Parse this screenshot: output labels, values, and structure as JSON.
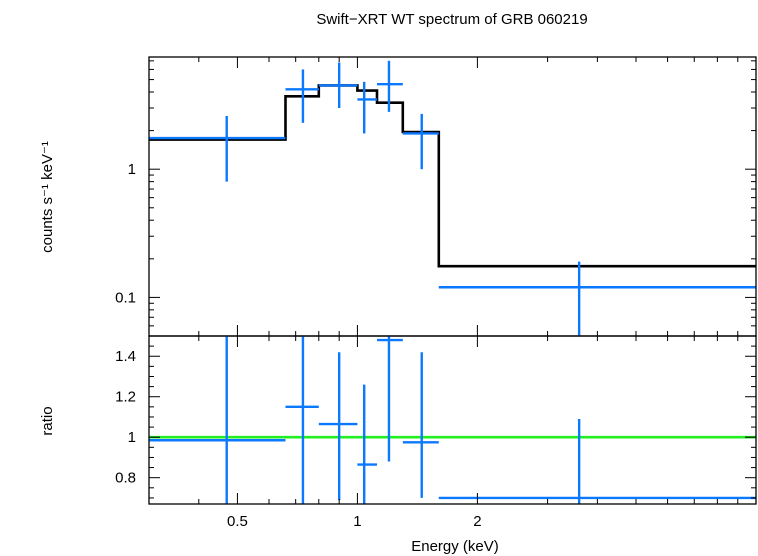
{
  "chart_data": {
    "title": "Swift−XRT WT spectrum of GRB 060219",
    "xlabel": "Energy (keV)",
    "type": "line",
    "x_scale": "log",
    "xlim": [
      0.3,
      10
    ],
    "x_ticks": [
      {
        "value": 0.5,
        "label": "0.5"
      },
      {
        "value": 1,
        "label": "1"
      },
      {
        "value": 2,
        "label": "2"
      }
    ],
    "panels": [
      {
        "id": "spectrum",
        "ylabel": "counts s⁻¹ keV⁻¹",
        "y_scale": "log",
        "ylim": [
          0.05,
          7.5
        ],
        "y_ticks": [
          {
            "value": 0.1,
            "label": "0.1"
          },
          {
            "value": 1,
            "label": "1"
          }
        ],
        "data_points": [
          {
            "x": 0.47,
            "xlo": 0.3,
            "xhi": 0.66,
            "y": 1.75,
            "ylo": 0.8,
            "yhi": 2.6
          },
          {
            "x": 0.73,
            "xlo": 0.66,
            "xhi": 0.8,
            "y": 4.2,
            "ylo": 2.3,
            "yhi": 6.0
          },
          {
            "x": 0.9,
            "xlo": 0.8,
            "xhi": 1.0,
            "y": 4.5,
            "ylo": 3.0,
            "yhi": 6.8
          },
          {
            "x": 1.04,
            "xlo": 1.0,
            "xhi": 1.12,
            "y": 3.5,
            "ylo": 1.9,
            "yhi": 4.8
          },
          {
            "x": 1.2,
            "xlo": 1.12,
            "xhi": 1.3,
            "y": 4.6,
            "ylo": 2.8,
            "yhi": 7.0
          },
          {
            "x": 1.45,
            "xlo": 1.3,
            "xhi": 1.6,
            "y": 1.9,
            "ylo": 1.0,
            "yhi": 2.7
          },
          {
            "x": 3.6,
            "xlo": 1.6,
            "xhi": 10.0,
            "y": 0.12,
            "ylo": 0.05,
            "yhi": 0.19
          }
        ],
        "model_steps": [
          {
            "xlo": 0.3,
            "xhi": 0.66,
            "y": 1.7
          },
          {
            "xlo": 0.66,
            "xhi": 0.8,
            "y": 3.7
          },
          {
            "xlo": 0.8,
            "xhi": 1.0,
            "y": 4.5
          },
          {
            "xlo": 1.0,
            "xhi": 1.12,
            "y": 4.1
          },
          {
            "xlo": 1.12,
            "xhi": 1.3,
            "y": 3.3
          },
          {
            "xlo": 1.3,
            "xhi": 1.6,
            "y": 1.95
          },
          {
            "xlo": 1.6,
            "xhi": 10.0,
            "y": 0.175
          }
        ]
      },
      {
        "id": "ratio",
        "ylabel": "ratio",
        "y_scale": "linear",
        "ylim": [
          0.67,
          1.5
        ],
        "y_ticks": [
          {
            "value": 0.8,
            "label": "0.8"
          },
          {
            "value": 1,
            "label": "1"
          },
          {
            "value": 1.2,
            "label": "1.2"
          },
          {
            "value": 1.4,
            "label": "1.4"
          }
        ],
        "reference_line": 1,
        "data_points": [
          {
            "x": 0.47,
            "xlo": 0.3,
            "xhi": 0.66,
            "y": 0.985,
            "ylo": 0.67,
            "yhi": 1.5
          },
          {
            "x": 0.73,
            "xlo": 0.66,
            "xhi": 0.8,
            "y": 1.15,
            "ylo": 0.67,
            "yhi": 1.5
          },
          {
            "x": 0.9,
            "xlo": 0.8,
            "xhi": 1.0,
            "y": 1.065,
            "ylo": 0.69,
            "yhi": 1.42
          },
          {
            "x": 1.04,
            "xlo": 1.0,
            "xhi": 1.12,
            "y": 0.865,
            "ylo": 0.67,
            "yhi": 1.26
          },
          {
            "x": 1.2,
            "xlo": 1.12,
            "xhi": 1.3,
            "y": 1.48,
            "ylo": 0.88,
            "yhi": 1.5
          },
          {
            "x": 1.45,
            "xlo": 1.3,
            "xhi": 1.6,
            "y": 0.975,
            "ylo": 0.7,
            "yhi": 1.42
          },
          {
            "x": 3.6,
            "xlo": 1.6,
            "xhi": 10.0,
            "y": 0.7,
            "ylo": 0.67,
            "yhi": 1.09
          }
        ]
      }
    ],
    "colors": {
      "data": "#0a78ff",
      "model": "#000000",
      "reference": "#22ee22",
      "frame": "#000000"
    }
  }
}
